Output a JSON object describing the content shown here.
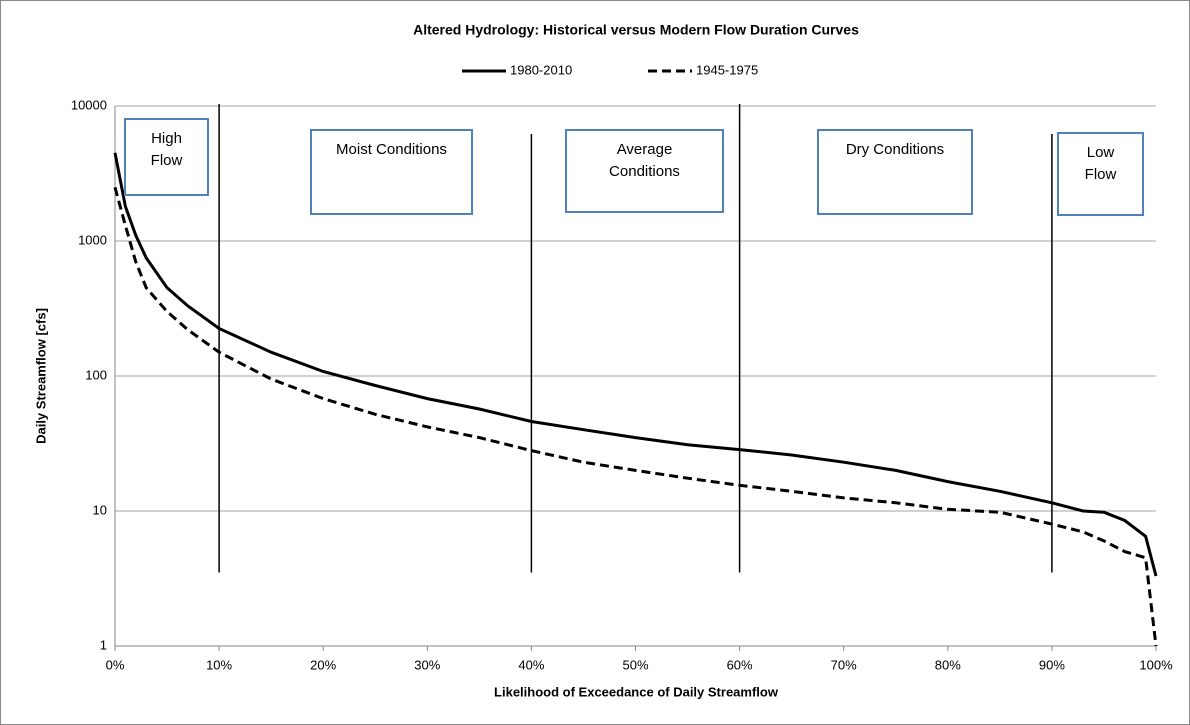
{
  "chart_data": {
    "type": "line",
    "title": "Altered Hydrology: Historical versus Modern Flow Duration Curves",
    "xlabel": "Likelihood of Exceedance of Daily Streamflow",
    "ylabel": "Daily Streamflow [cfs]",
    "x": [
      0,
      1,
      2,
      3,
      5,
      7,
      10,
      15,
      20,
      25,
      30,
      35,
      40,
      45,
      50,
      55,
      60,
      65,
      70,
      75,
      80,
      85,
      90,
      93,
      95,
      97,
      99,
      100
    ],
    "series": [
      {
        "name": "1980-2010",
        "color": "#000000",
        "line_style": "solid",
        "values": [
          4500,
          1800,
          1100,
          750,
          450,
          330,
          225,
          150,
          108,
          85,
          68,
          57,
          46,
          40,
          35,
          31,
          28.5,
          26,
          23,
          20,
          16.5,
          14,
          11.5,
          10,
          9.8,
          8.5,
          6.5,
          3.3
        ]
      },
      {
        "name": "1945-1975",
        "color": "#000000",
        "line_style": "dashed",
        "values": [
          2500,
          1300,
          700,
          450,
          300,
          220,
          150,
          95,
          68,
          52,
          42,
          35,
          28,
          23,
          20,
          17.5,
          15.5,
          14,
          12.5,
          11.5,
          10.3,
          9.8,
          8,
          7,
          6,
          5,
          4.5,
          1
        ]
      }
    ],
    "xlim": [
      0,
      100
    ],
    "xticks": [
      {
        "value": 0,
        "label": "0%"
      },
      {
        "value": 10,
        "label": "10%"
      },
      {
        "value": 20,
        "label": "20%"
      },
      {
        "value": 30,
        "label": "30%"
      },
      {
        "value": 40,
        "label": "40%"
      },
      {
        "value": 50,
        "label": "50%"
      },
      {
        "value": 60,
        "label": "60%"
      },
      {
        "value": 70,
        "label": "70%"
      },
      {
        "value": 80,
        "label": "80%"
      },
      {
        "value": 90,
        "label": "90%"
      },
      {
        "value": 100,
        "label": "100%"
      }
    ],
    "ylim": [
      1,
      10000
    ],
    "yticks": [
      1,
      10,
      100,
      1000,
      10000
    ],
    "log_y": true,
    "grid": true,
    "legend": "top",
    "zone_dividers": [
      10,
      40,
      60,
      90
    ],
    "zones": [
      "High Flow",
      "Moist Conditions",
      "Average Conditions",
      "Dry Conditions",
      "Low Flow"
    ]
  }
}
